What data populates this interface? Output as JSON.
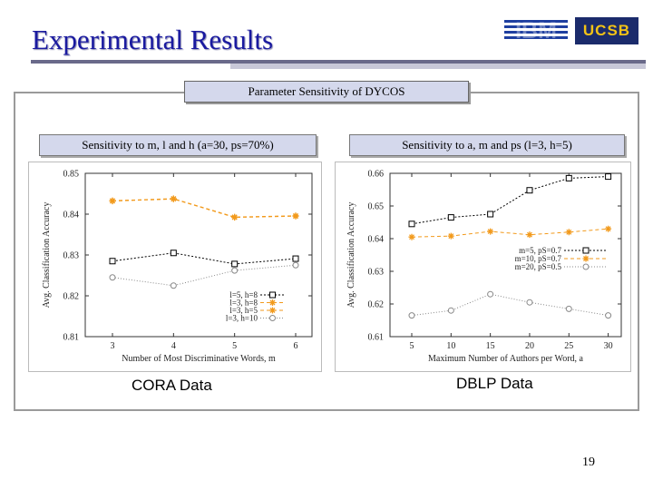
{
  "slide": {
    "title": "Experimental Results",
    "section_title": "Parameter Sensitivity of DYCOS",
    "left_panel_title": "Sensitivity to m, l and h (a=30, ps=70%)",
    "right_panel_title": "Sensitivity to a, m and ps (l=3, h=5)",
    "left_caption": "CORA Data",
    "right_caption": "DBLP Data",
    "page_number": "19",
    "logos": {
      "ibm": "IBM",
      "ucsb": "UCSB"
    }
  },
  "chart_data": [
    {
      "type": "line",
      "xlabel": "Number of Most Discriminative Words, m",
      "ylabel": "Avg. Classification Accuracy",
      "x": [
        3,
        4,
        5,
        6
      ],
      "xlim": [
        3,
        6
      ],
      "ylim": [
        0.81,
        0.85
      ],
      "yticks": [
        "0.81",
        "0.82",
        "0.83",
        "0.84",
        "0.85"
      ],
      "xticks": [
        "3",
        "4",
        "5",
        "6"
      ],
      "legend_position": "bottom-right",
      "series": [
        {
          "name": "l=5, h=8",
          "values": [
            0.8285,
            0.8305,
            0.8278,
            0.8291
          ],
          "color": "#000000",
          "marker": "square",
          "dash": "2,2"
        },
        {
          "name": "l=3, h=8",
          "values": [
            0.8432,
            0.8437,
            0.8392,
            0.8395
          ],
          "color": "#f29a1c",
          "marker": "star",
          "dash": "4,3"
        },
        {
          "name": "l=3, h=5",
          "values": [
            0.8433,
            0.8438,
            0.8393,
            0.8396
          ],
          "color": "#f29a1c",
          "marker": "star",
          "dash": "4,3"
        },
        {
          "name": "l=3, h=10",
          "values": [
            0.8245,
            0.8225,
            0.8262,
            0.8275
          ],
          "color": "#888888",
          "marker": "circle",
          "dash": "1,2"
        }
      ]
    },
    {
      "type": "line",
      "xlabel": "Maximum Number of Authors per Word, a",
      "ylabel": "Avg. Classification Accuracy",
      "x": [
        5,
        10,
        15,
        20,
        25,
        30
      ],
      "xlim": [
        5,
        30
      ],
      "ylim": [
        0.61,
        0.66
      ],
      "yticks": [
        "0.61",
        "0.62",
        "0.63",
        "0.64",
        "0.65",
        "0.66"
      ],
      "xticks": [
        "5",
        "10",
        "15",
        "20",
        "25",
        "30"
      ],
      "legend_position": "right",
      "series": [
        {
          "name": "m=5, pS=0.7",
          "values": [
            0.6445,
            0.6465,
            0.6475,
            0.6548,
            0.6585,
            0.659
          ],
          "color": "#000000",
          "marker": "square",
          "dash": "2,2"
        },
        {
          "name": "m=10, pS=0.7",
          "values": [
            0.6405,
            0.6408,
            0.6422,
            0.6412,
            0.642,
            0.643
          ],
          "color": "#f29a1c",
          "marker": "star",
          "dash": "4,3"
        },
        {
          "name": "m=20, pS=0.5",
          "values": [
            0.6165,
            0.618,
            0.623,
            0.6205,
            0.6185,
            0.6165
          ],
          "color": "#888888",
          "marker": "circle",
          "dash": "1,2"
        }
      ]
    }
  ]
}
